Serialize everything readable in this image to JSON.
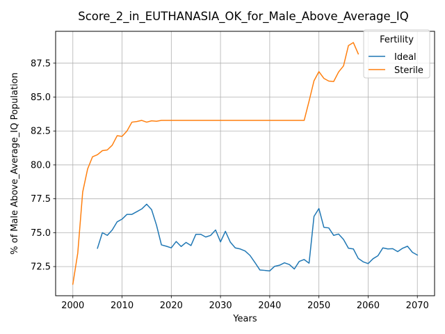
{
  "chart_data": {
    "type": "line",
    "title": "Score_2_in_EUTHANASIA_OK_for_Male_Above_Average_IQ",
    "xlabel": "Years",
    "ylabel": "% of Male Above_Average_IQ Population",
    "xlim": [
      1996.5,
      2073.5
    ],
    "ylim": [
      70.35,
      89.85
    ],
    "xticks": [
      2000,
      2010,
      2020,
      2030,
      2040,
      2050,
      2060,
      2070
    ],
    "yticks": [
      72.5,
      75.0,
      77.5,
      80.0,
      82.5,
      85.0,
      87.5
    ],
    "ytick_labels": [
      "72.5",
      "75.0",
      "77.5",
      "80.0",
      "82.5",
      "85.0",
      "87.5"
    ],
    "grid": true,
    "legend": {
      "title": "Fertility",
      "position": "top-right"
    },
    "series": [
      {
        "name": "Ideal",
        "color": "#1f77b4",
        "x": [
          2005,
          2006,
          2007,
          2008,
          2009,
          2010,
          2011,
          2012,
          2013,
          2014,
          2015,
          2016,
          2017,
          2018,
          2019,
          2020,
          2021,
          2022,
          2023,
          2024,
          2025,
          2026,
          2027,
          2028,
          2029,
          2030,
          2031,
          2032,
          2033,
          2034,
          2035,
          2036,
          2037,
          2038,
          2039,
          2040,
          2041,
          2042,
          2043,
          2044,
          2045,
          2046,
          2047,
          2048,
          2049,
          2050,
          2051,
          2052,
          2053,
          2054,
          2055,
          2056,
          2057,
          2058,
          2059,
          2060,
          2061,
          2062,
          2063,
          2064,
          2065,
          2066,
          2067,
          2068,
          2069,
          2070
        ],
        "values": [
          73.85,
          75.0,
          74.8,
          75.2,
          75.8,
          76.0,
          76.35,
          76.35,
          76.55,
          76.75,
          77.1,
          76.7,
          75.55,
          74.1,
          74.0,
          73.88,
          74.35,
          73.98,
          74.28,
          74.05,
          74.88,
          74.88,
          74.68,
          74.8,
          75.2,
          74.32,
          75.1,
          74.3,
          73.88,
          73.8,
          73.65,
          73.32,
          72.8,
          72.25,
          72.22,
          72.18,
          72.52,
          72.6,
          72.78,
          72.65,
          72.32,
          72.88,
          73.02,
          72.75,
          76.2,
          76.78,
          75.4,
          75.35,
          74.8,
          74.9,
          74.5,
          73.85,
          73.8,
          73.1,
          72.85,
          72.72,
          73.08,
          73.3,
          73.88,
          73.8,
          73.82,
          73.6,
          73.85,
          74.0,
          73.55,
          73.35
        ]
      },
      {
        "name": "Sterile",
        "color": "#ff7f0e",
        "x": [
          2000,
          2001,
          2002,
          2003,
          2004,
          2005,
          2006,
          2007,
          2008,
          2009,
          2010,
          2011,
          2012,
          2013,
          2014,
          2015,
          2016,
          2017,
          2018,
          2019,
          2020,
          2021,
          2022,
          2023,
          2024,
          2025,
          2026,
          2027,
          2028,
          2029,
          2030,
          2031,
          2032,
          2033,
          2034,
          2035,
          2036,
          2037,
          2038,
          2039,
          2040,
          2041,
          2042,
          2043,
          2044,
          2045,
          2046,
          2047,
          2048,
          2049,
          2050,
          2051,
          2052,
          2053,
          2054,
          2055,
          2056,
          2057,
          2058
        ],
        "values": [
          71.2,
          73.5,
          78.0,
          79.7,
          80.6,
          80.75,
          81.05,
          81.1,
          81.45,
          82.15,
          82.1,
          82.5,
          83.15,
          83.2,
          83.28,
          83.15,
          83.25,
          83.22,
          83.28,
          83.28,
          83.28,
          83.28,
          83.28,
          83.28,
          83.28,
          83.28,
          83.28,
          83.28,
          83.28,
          83.28,
          83.28,
          83.28,
          83.28,
          83.28,
          83.28,
          83.28,
          83.28,
          83.28,
          83.28,
          83.28,
          83.28,
          83.28,
          83.28,
          83.28,
          83.28,
          83.28,
          83.28,
          83.28,
          84.7,
          86.2,
          86.88,
          86.38,
          86.18,
          86.15,
          86.85,
          87.3,
          88.8,
          89.02,
          88.18
        ]
      }
    ]
  }
}
